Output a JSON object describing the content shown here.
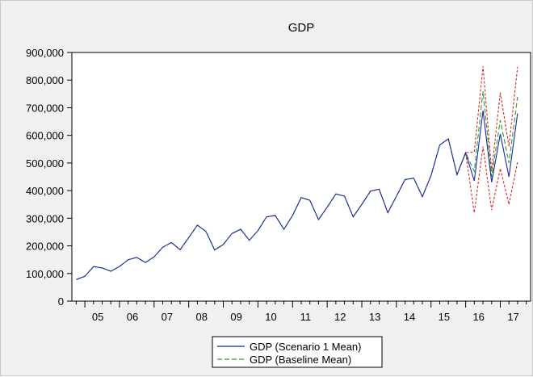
{
  "chart_data": {
    "type": "line",
    "title": "GDP",
    "xlabel": "",
    "ylabel": "",
    "x_tick_labels": [
      "05",
      "06",
      "07",
      "08",
      "09",
      "10",
      "11",
      "12",
      "13",
      "14",
      "15",
      "16",
      "17"
    ],
    "y_tick_labels": [
      "0",
      "100,000",
      "200,000",
      "300,000",
      "400,000",
      "500,000",
      "600,000",
      "700,000",
      "800,000",
      "900,000"
    ],
    "ylim": [
      0,
      900000
    ],
    "y_ticks": [
      0,
      100000,
      200000,
      300000,
      400000,
      500000,
      600000,
      700000,
      800000,
      900000
    ],
    "x": [
      "2004Q4",
      "2005Q1",
      "2005Q2",
      "2005Q3",
      "2005Q4",
      "2006Q1",
      "2006Q2",
      "2006Q3",
      "2006Q4",
      "2007Q1",
      "2007Q2",
      "2007Q3",
      "2007Q4",
      "2008Q1",
      "2008Q2",
      "2008Q3",
      "2008Q4",
      "2009Q1",
      "2009Q2",
      "2009Q3",
      "2009Q4",
      "2010Q1",
      "2010Q2",
      "2010Q3",
      "2010Q4",
      "2011Q1",
      "2011Q2",
      "2011Q3",
      "2011Q4",
      "2012Q1",
      "2012Q2",
      "2012Q3",
      "2012Q4",
      "2013Q1",
      "2013Q2",
      "2013Q3",
      "2013Q4",
      "2014Q1",
      "2014Q2",
      "2014Q3",
      "2014Q4",
      "2015Q1",
      "2015Q2",
      "2015Q3",
      "2015Q4",
      "2016Q1",
      "2016Q2",
      "2016Q3",
      "2016Q4",
      "2017Q1",
      "2017Q2",
      "2017Q3",
      "2017Q4"
    ],
    "grid": false,
    "legend_position": "bottom-center",
    "series": [
      {
        "name": "GDP (Scenario 1 Mean)",
        "color": "#1a2a9c",
        "style": "solid",
        "values": [
          78000,
          90000,
          125000,
          120000,
          108000,
          125000,
          150000,
          158000,
          140000,
          160000,
          195000,
          212000,
          186000,
          230000,
          275000,
          252000,
          185000,
          205000,
          245000,
          260000,
          220000,
          255000,
          305000,
          310000,
          260000,
          310000,
          375000,
          365000,
          295000,
          340000,
          388000,
          380000,
          305000,
          350000,
          398000,
          405000,
          320000,
          380000,
          440000,
          445000,
          378000,
          455000,
          565000,
          587000,
          458000,
          537000,
          435000,
          690000,
          430000,
          605000,
          450000,
          680000,
          null
        ]
      },
      {
        "name": "GDP (Baseline Mean)",
        "color": "#2e9a2e",
        "style": "dashed",
        "values": [
          78000,
          90000,
          125000,
          120000,
          108000,
          125000,
          150000,
          158000,
          140000,
          160000,
          195000,
          212000,
          186000,
          230000,
          275000,
          252000,
          185000,
          205000,
          245000,
          260000,
          220000,
          255000,
          305000,
          310000,
          260000,
          310000,
          375000,
          365000,
          295000,
          340000,
          388000,
          380000,
          305000,
          350000,
          398000,
          405000,
          320000,
          380000,
          440000,
          445000,
          378000,
          455000,
          565000,
          587000,
          458000,
          537000,
          470000,
          760000,
          450000,
          655000,
          500000,
          740000,
          null
        ]
      },
      {
        "name": "",
        "color": "#d42a2a",
        "style": "dotted",
        "band": "upper",
        "values": [
          null,
          null,
          null,
          null,
          null,
          null,
          null,
          null,
          null,
          null,
          null,
          null,
          null,
          null,
          null,
          null,
          null,
          null,
          null,
          null,
          null,
          null,
          null,
          null,
          null,
          null,
          null,
          null,
          null,
          null,
          null,
          null,
          null,
          null,
          null,
          null,
          null,
          null,
          null,
          null,
          null,
          null,
          null,
          null,
          458000,
          537000,
          540000,
          850000,
          470000,
          755000,
          560000,
          848000,
          null
        ]
      },
      {
        "name": "",
        "color": "#d42a2a",
        "style": "dotted",
        "band": "lower",
        "values": [
          null,
          null,
          null,
          null,
          null,
          null,
          null,
          null,
          null,
          null,
          null,
          null,
          null,
          null,
          null,
          null,
          null,
          null,
          null,
          null,
          null,
          null,
          null,
          null,
          null,
          null,
          null,
          null,
          null,
          null,
          null,
          null,
          null,
          null,
          null,
          null,
          null,
          null,
          null,
          null,
          null,
          null,
          null,
          null,
          458000,
          537000,
          320000,
          560000,
          330000,
          480000,
          350000,
          505000,
          null
        ]
      }
    ]
  }
}
